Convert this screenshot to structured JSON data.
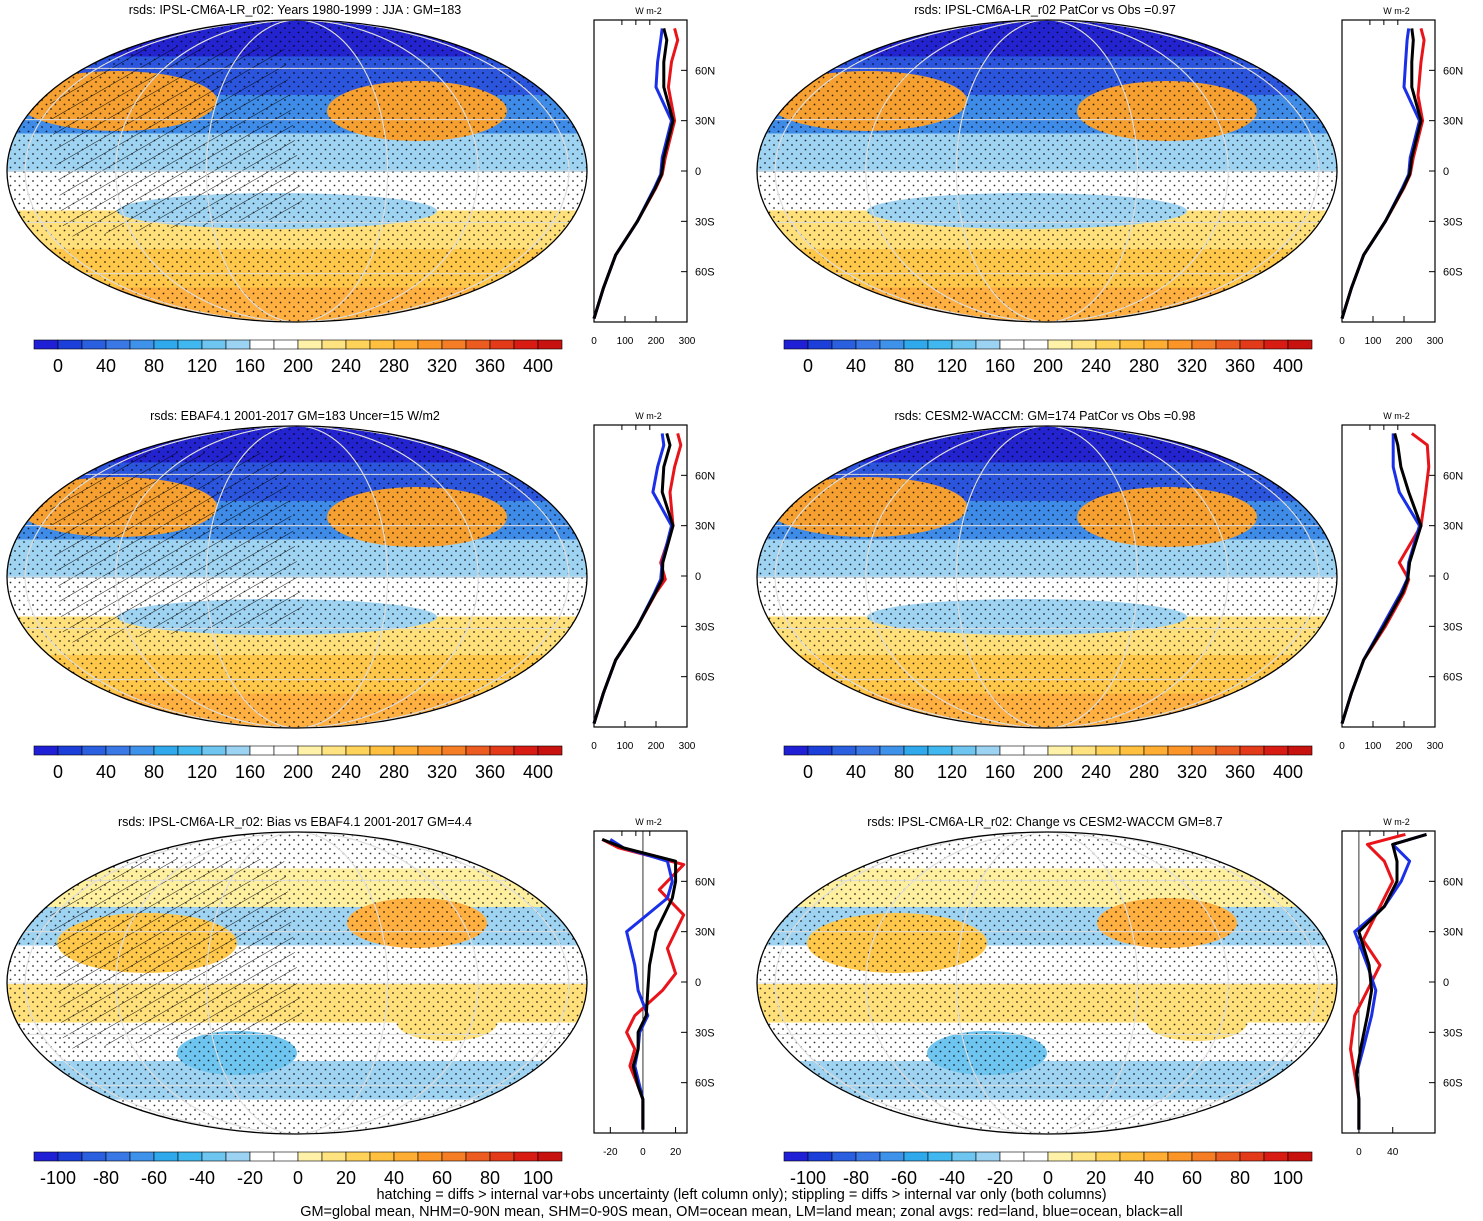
{
  "panels": [
    {
      "title": "rsds: IPSL-CM6A-LR_r02: Years 1980-1999 : JJA : GM=183",
      "colorbar": "abs",
      "hatching": true,
      "zonal": {
        "xticks": [
          "0",
          "100",
          "200",
          "300"
        ],
        "xvals": [
          0,
          100,
          200,
          300
        ],
        "xlim": [
          0,
          300
        ],
        "ylabels": [
          "60N",
          "30N",
          "0",
          "30S",
          "60S"
        ],
        "unit": "W m-2",
        "red": [
          [
            0,
            -88
          ],
          [
            30,
            -70
          ],
          [
            70,
            -50
          ],
          [
            140,
            -30
          ],
          [
            200,
            -10
          ],
          [
            220,
            -2
          ],
          [
            230,
            8
          ],
          [
            260,
            30
          ],
          [
            240,
            50
          ],
          [
            250,
            65
          ],
          [
            270,
            78
          ],
          [
            260,
            85
          ]
        ],
        "blue": [
          [
            0,
            -88
          ],
          [
            30,
            -70
          ],
          [
            70,
            -50
          ],
          [
            140,
            -30
          ],
          [
            195,
            -10
          ],
          [
            215,
            -2
          ],
          [
            220,
            8
          ],
          [
            250,
            30
          ],
          [
            200,
            50
          ],
          [
            205,
            65
          ],
          [
            215,
            78
          ],
          [
            220,
            85
          ]
        ],
        "black": [
          [
            0,
            -88
          ],
          [
            30,
            -70
          ],
          [
            70,
            -50
          ],
          [
            140,
            -30
          ],
          [
            198,
            -10
          ],
          [
            218,
            -2
          ],
          [
            225,
            8
          ],
          [
            255,
            30
          ],
          [
            225,
            50
          ],
          [
            225,
            65
          ],
          [
            235,
            78
          ],
          [
            225,
            85
          ]
        ]
      }
    },
    {
      "title": "rsds: IPSL-CM6A-LR_r02 PatCor vs Obs =0.97",
      "colorbar": "abs",
      "hatching": false,
      "zonal": {
        "xticks": [
          "0",
          "100",
          "200",
          "300"
        ],
        "xvals": [
          0,
          100,
          200,
          300
        ],
        "xlim": [
          0,
          300
        ],
        "ylabels": [
          "60N",
          "30N",
          "0",
          "30S",
          "60S"
        ],
        "unit": "W m-2",
        "red": [
          [
            0,
            -88
          ],
          [
            30,
            -70
          ],
          [
            70,
            -50
          ],
          [
            140,
            -30
          ],
          [
            200,
            -10
          ],
          [
            220,
            -2
          ],
          [
            230,
            8
          ],
          [
            260,
            30
          ],
          [
            245,
            45
          ],
          [
            255,
            65
          ],
          [
            265,
            78
          ],
          [
            255,
            85
          ]
        ],
        "blue": [
          [
            0,
            -88
          ],
          [
            30,
            -70
          ],
          [
            70,
            -50
          ],
          [
            140,
            -30
          ],
          [
            195,
            -10
          ],
          [
            215,
            -2
          ],
          [
            220,
            8
          ],
          [
            250,
            30
          ],
          [
            200,
            50
          ],
          [
            205,
            65
          ],
          [
            210,
            78
          ],
          [
            215,
            85
          ]
        ],
        "black": [
          [
            0,
            -88
          ],
          [
            30,
            -70
          ],
          [
            70,
            -50
          ],
          [
            140,
            -30
          ],
          [
            198,
            -10
          ],
          [
            218,
            -2
          ],
          [
            225,
            8
          ],
          [
            255,
            30
          ],
          [
            225,
            50
          ],
          [
            225,
            65
          ],
          [
            230,
            78
          ],
          [
            225,
            85
          ]
        ]
      }
    },
    {
      "title": "rsds: EBAF4.1 2001-2017 GM=183 Uncer=15 W/m2",
      "colorbar": "abs",
      "hatching": true,
      "zonal": {
        "xticks": [
          "0",
          "100",
          "200",
          "300"
        ],
        "xvals": [
          0,
          100,
          200,
          300
        ],
        "xlim": [
          0,
          300
        ],
        "ylabels": [
          "60N",
          "30N",
          "0",
          "30S",
          "60S"
        ],
        "unit": "W m-2",
        "red": [
          [
            0,
            -88
          ],
          [
            30,
            -70
          ],
          [
            70,
            -50
          ],
          [
            140,
            -30
          ],
          [
            200,
            -10
          ],
          [
            230,
            -2
          ],
          [
            215,
            8
          ],
          [
            255,
            30
          ],
          [
            245,
            50
          ],
          [
            260,
            65
          ],
          [
            280,
            78
          ],
          [
            270,
            85
          ]
        ],
        "blue": [
          [
            0,
            -88
          ],
          [
            30,
            -70
          ],
          [
            70,
            -50
          ],
          [
            140,
            -30
          ],
          [
            195,
            -10
          ],
          [
            215,
            -2
          ],
          [
            220,
            8
          ],
          [
            250,
            30
          ],
          [
            190,
            50
          ],
          [
            205,
            65
          ],
          [
            225,
            78
          ],
          [
            220,
            85
          ]
        ],
        "black": [
          [
            0,
            -88
          ],
          [
            30,
            -70
          ],
          [
            70,
            -50
          ],
          [
            140,
            -30
          ],
          [
            198,
            -10
          ],
          [
            220,
            -2
          ],
          [
            222,
            8
          ],
          [
            255,
            30
          ],
          [
            220,
            50
          ],
          [
            225,
            65
          ],
          [
            245,
            78
          ],
          [
            235,
            85
          ]
        ]
      }
    },
    {
      "title": "rsds: CESM2-WACCM: GM=174 PatCor vs Obs =0.98",
      "colorbar": "abs",
      "hatching": false,
      "zonal": {
        "xticks": [
          "0",
          "100",
          "200",
          "300"
        ],
        "xvals": [
          0,
          100,
          200,
          300
        ],
        "xlim": [
          0,
          300
        ],
        "ylabels": [
          "60N",
          "30N",
          "0",
          "30S",
          "60S"
        ],
        "unit": "W m-2",
        "red": [
          [
            0,
            -88
          ],
          [
            30,
            -70
          ],
          [
            70,
            -50
          ],
          [
            140,
            -30
          ],
          [
            200,
            -10
          ],
          [
            215,
            -2
          ],
          [
            185,
            8
          ],
          [
            255,
            30
          ],
          [
            270,
            50
          ],
          [
            280,
            65
          ],
          [
            275,
            78
          ],
          [
            225,
            85
          ]
        ],
        "blue": [
          [
            0,
            -88
          ],
          [
            30,
            -70
          ],
          [
            70,
            -50
          ],
          [
            130,
            -30
          ],
          [
            190,
            -10
          ],
          [
            210,
            -2
          ],
          [
            215,
            8
          ],
          [
            250,
            30
          ],
          [
            185,
            50
          ],
          [
            165,
            65
          ],
          [
            165,
            78
          ],
          [
            165,
            85
          ]
        ],
        "black": [
          [
            0,
            -88
          ],
          [
            30,
            -70
          ],
          [
            70,
            -50
          ],
          [
            135,
            -30
          ],
          [
            195,
            -10
          ],
          [
            212,
            -2
          ],
          [
            218,
            8
          ],
          [
            255,
            30
          ],
          [
            215,
            50
          ],
          [
            190,
            65
          ],
          [
            180,
            78
          ],
          [
            170,
            85
          ]
        ]
      }
    },
    {
      "title": "rsds: IPSL-CM6A-LR_r02: Bias vs EBAF4.1 2001-2017 GM=4.4",
      "colorbar": "diff",
      "hatching": true,
      "zonal": {
        "xticks": [
          "-20",
          "0",
          "20"
        ],
        "xvals": [
          -20,
          0,
          20
        ],
        "xlim": [
          -30,
          27
        ],
        "ylabels": [
          "60N",
          "30N",
          "0",
          "30S",
          "60S"
        ],
        "unit": "W m-2",
        "red": [
          [
            0,
            -88
          ],
          [
            0,
            -70
          ],
          [
            -3,
            -62
          ],
          [
            -8,
            -50
          ],
          [
            -5,
            -40
          ],
          [
            -10,
            -30
          ],
          [
            -5,
            -20
          ],
          [
            12,
            -5
          ],
          [
            20,
            5
          ],
          [
            15,
            20
          ],
          [
            25,
            40
          ],
          [
            10,
            55
          ],
          [
            25,
            70
          ],
          [
            -15,
            80
          ],
          [
            -25,
            85
          ]
        ],
        "blue": [
          [
            0,
            -88
          ],
          [
            0,
            -70
          ],
          [
            -2,
            -62
          ],
          [
            -5,
            -50
          ],
          [
            -3,
            -40
          ],
          [
            -2,
            -30
          ],
          [
            3,
            -20
          ],
          [
            -3,
            -5
          ],
          [
            -5,
            10
          ],
          [
            -10,
            30
          ],
          [
            15,
            50
          ],
          [
            18,
            60
          ],
          [
            15,
            72
          ],
          [
            -12,
            80
          ],
          [
            -20,
            85
          ]
        ],
        "black": [
          [
            0,
            -88
          ],
          [
            0,
            -70
          ],
          [
            -3,
            -62
          ],
          [
            -6,
            -50
          ],
          [
            -3,
            -40
          ],
          [
            -3,
            -30
          ],
          [
            2,
            -20
          ],
          [
            3,
            -5
          ],
          [
            4,
            10
          ],
          [
            8,
            30
          ],
          [
            18,
            50
          ],
          [
            20,
            60
          ],
          [
            20,
            72
          ],
          [
            -12,
            80
          ],
          [
            -25,
            85
          ]
        ]
      }
    },
    {
      "title": "rsds: IPSL-CM6A-LR_r02: Change vs CESM2-WACCM GM=8.7",
      "colorbar": "diff",
      "hatching": false,
      "zonal": {
        "xticks": [
          "0",
          "40"
        ],
        "xvals": [
          0,
          40
        ],
        "xlim": [
          -20,
          90
        ],
        "ylabels": [
          "60N",
          "30N",
          "0",
          "30S",
          "60S"
        ],
        "unit": "W m-2",
        "red": [
          [
            0,
            -88
          ],
          [
            0,
            -70
          ],
          [
            -5,
            -55
          ],
          [
            -10,
            -40
          ],
          [
            -5,
            -20
          ],
          [
            10,
            -5
          ],
          [
            25,
            10
          ],
          [
            5,
            25
          ],
          [
            20,
            40
          ],
          [
            40,
            60
          ],
          [
            30,
            72
          ],
          [
            10,
            82
          ],
          [
            55,
            88
          ]
        ],
        "blue": [
          [
            0,
            -88
          ],
          [
            0,
            -70
          ],
          [
            -3,
            -55
          ],
          [
            5,
            -40
          ],
          [
            15,
            -20
          ],
          [
            20,
            -5
          ],
          [
            10,
            10
          ],
          [
            -5,
            30
          ],
          [
            30,
            45
          ],
          [
            50,
            60
          ],
          [
            60,
            72
          ],
          [
            40,
            82
          ],
          [
            80,
            88
          ]
        ],
        "black": [
          [
            0,
            -88
          ],
          [
            0,
            -70
          ],
          [
            -3,
            -55
          ],
          [
            2,
            -40
          ],
          [
            10,
            -20
          ],
          [
            15,
            -5
          ],
          [
            12,
            10
          ],
          [
            0,
            30
          ],
          [
            30,
            45
          ],
          [
            45,
            60
          ],
          [
            45,
            72
          ],
          [
            40,
            82
          ],
          [
            80,
            88
          ]
        ]
      }
    }
  ],
  "colorbars": {
    "abs": {
      "labels": [
        "0",
        "40",
        "80",
        "120",
        "160",
        "200",
        "240",
        "280",
        "320",
        "360",
        "400"
      ],
      "colors": [
        "#1f1fd6",
        "#1b3fd8",
        "#2a5fe0",
        "#3a78e6",
        "#3f92ea",
        "#2fa8ec",
        "#40b7ef",
        "#6ec5f0",
        "#9cd3f2",
        "#ffffff",
        "#ffffff",
        "#fff2a8",
        "#ffe380",
        "#ffd25a",
        "#ffc040",
        "#ffad33",
        "#fb9528",
        "#f57d25",
        "#ec5c20",
        "#e33a1a",
        "#d81c14",
        "#c8120f"
      ]
    },
    "diff": {
      "labels": [
        "-100",
        "-80",
        "-60",
        "-40",
        "-20",
        "0",
        "20",
        "40",
        "60",
        "80",
        "100"
      ],
      "colors": [
        "#1f1fd6",
        "#1b3fd8",
        "#2a5fe0",
        "#3a78e6",
        "#3f92ea",
        "#2fa8ec",
        "#40b7ef",
        "#6ec5f0",
        "#9cd3f2",
        "#ffffff",
        "#ffffff",
        "#fff2a8",
        "#ffe380",
        "#ffd25a",
        "#ffc040",
        "#ffad33",
        "#fb9528",
        "#f57d25",
        "#ec5c20",
        "#e33a1a",
        "#d81c14",
        "#c8120f"
      ]
    }
  },
  "legend": {
    "red": "#e8141a",
    "blue": "#1a2fe8",
    "black": "#000000"
  },
  "footnotes": {
    "line1": "hatching = diffs > internal var+obs uncertainty (left column only); stippling = diffs > internal var only (both columns)",
    "line2": "GM=global mean, NHM=0-90N mean, SHM=0-90S mean, OM=ocean mean, LM=land mean; zonal avgs: red=land, blue=ocean, black=all"
  }
}
